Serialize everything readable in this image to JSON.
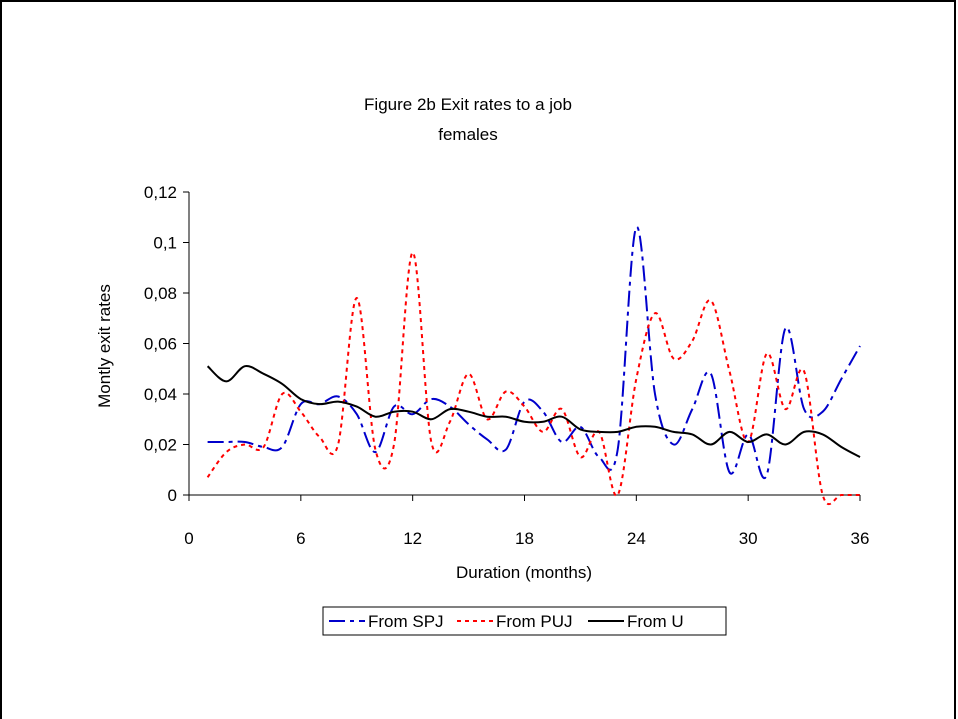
{
  "chart_data": {
    "type": "line",
    "title": "Figure 2b Exit rates to a job",
    "subtitle": "females",
    "xlabel": "Duration (months)",
    "ylabel": "Montly exit rates",
    "xlim": [
      0,
      36
    ],
    "ylim": [
      0,
      0.12
    ],
    "xticks": [
      0,
      6,
      12,
      18,
      24,
      30,
      36
    ],
    "xtick_labels": [
      "0",
      "6",
      "12",
      "18",
      "24",
      "30",
      "36"
    ],
    "yticks": [
      0,
      0.02,
      0.04,
      0.06,
      0.08,
      0.1,
      0.12
    ],
    "ytick_labels": [
      "0",
      "0,02",
      "0,04",
      "0,06",
      "0,08",
      "0,1",
      "0,12"
    ],
    "grid": false,
    "legend_position": "bottom",
    "x": [
      1,
      2,
      3,
      4,
      5,
      6,
      7,
      8,
      9,
      10,
      11,
      12,
      13,
      14,
      15,
      16,
      17,
      18,
      19,
      20,
      21,
      22,
      23,
      24,
      25,
      26,
      27,
      28,
      29,
      30,
      31,
      32,
      33,
      34,
      35,
      36
    ],
    "series": [
      {
        "name": "From SPJ",
        "color": "#0000cc",
        "dash": "dash-dot",
        "values": [
          0.021,
          0.021,
          0.021,
          0.019,
          0.019,
          0.036,
          0.036,
          0.039,
          0.032,
          0.017,
          0.035,
          0.032,
          0.038,
          0.035,
          0.028,
          0.022,
          0.018,
          0.037,
          0.033,
          0.021,
          0.027,
          0.015,
          0.018,
          0.106,
          0.04,
          0.02,
          0.034,
          0.048,
          0.009,
          0.024,
          0.008,
          0.066,
          0.034,
          0.033,
          0.046,
          0.059
        ]
      },
      {
        "name": "From PUJ",
        "color": "#ff0000",
        "dash": "dotted",
        "values": [
          0.007,
          0.017,
          0.02,
          0.019,
          0.04,
          0.033,
          0.023,
          0.02,
          0.078,
          0.018,
          0.02,
          0.096,
          0.021,
          0.029,
          0.048,
          0.03,
          0.041,
          0.035,
          0.025,
          0.034,
          0.015,
          0.025,
          0.0,
          0.046,
          0.072,
          0.054,
          0.061,
          0.077,
          0.049,
          0.021,
          0.056,
          0.034,
          0.049,
          0.0,
          0.0,
          0.0
        ]
      },
      {
        "name": "From U",
        "color": "#000000",
        "dash": "solid",
        "values": [
          0.051,
          0.045,
          0.051,
          0.048,
          0.044,
          0.038,
          0.036,
          0.037,
          0.035,
          0.031,
          0.033,
          0.033,
          0.03,
          0.034,
          0.033,
          0.031,
          0.031,
          0.029,
          0.029,
          0.031,
          0.026,
          0.025,
          0.025,
          0.027,
          0.027,
          0.025,
          0.024,
          0.02,
          0.025,
          0.021,
          0.024,
          0.02,
          0.025,
          0.024,
          0.019,
          0.015
        ]
      }
    ]
  }
}
